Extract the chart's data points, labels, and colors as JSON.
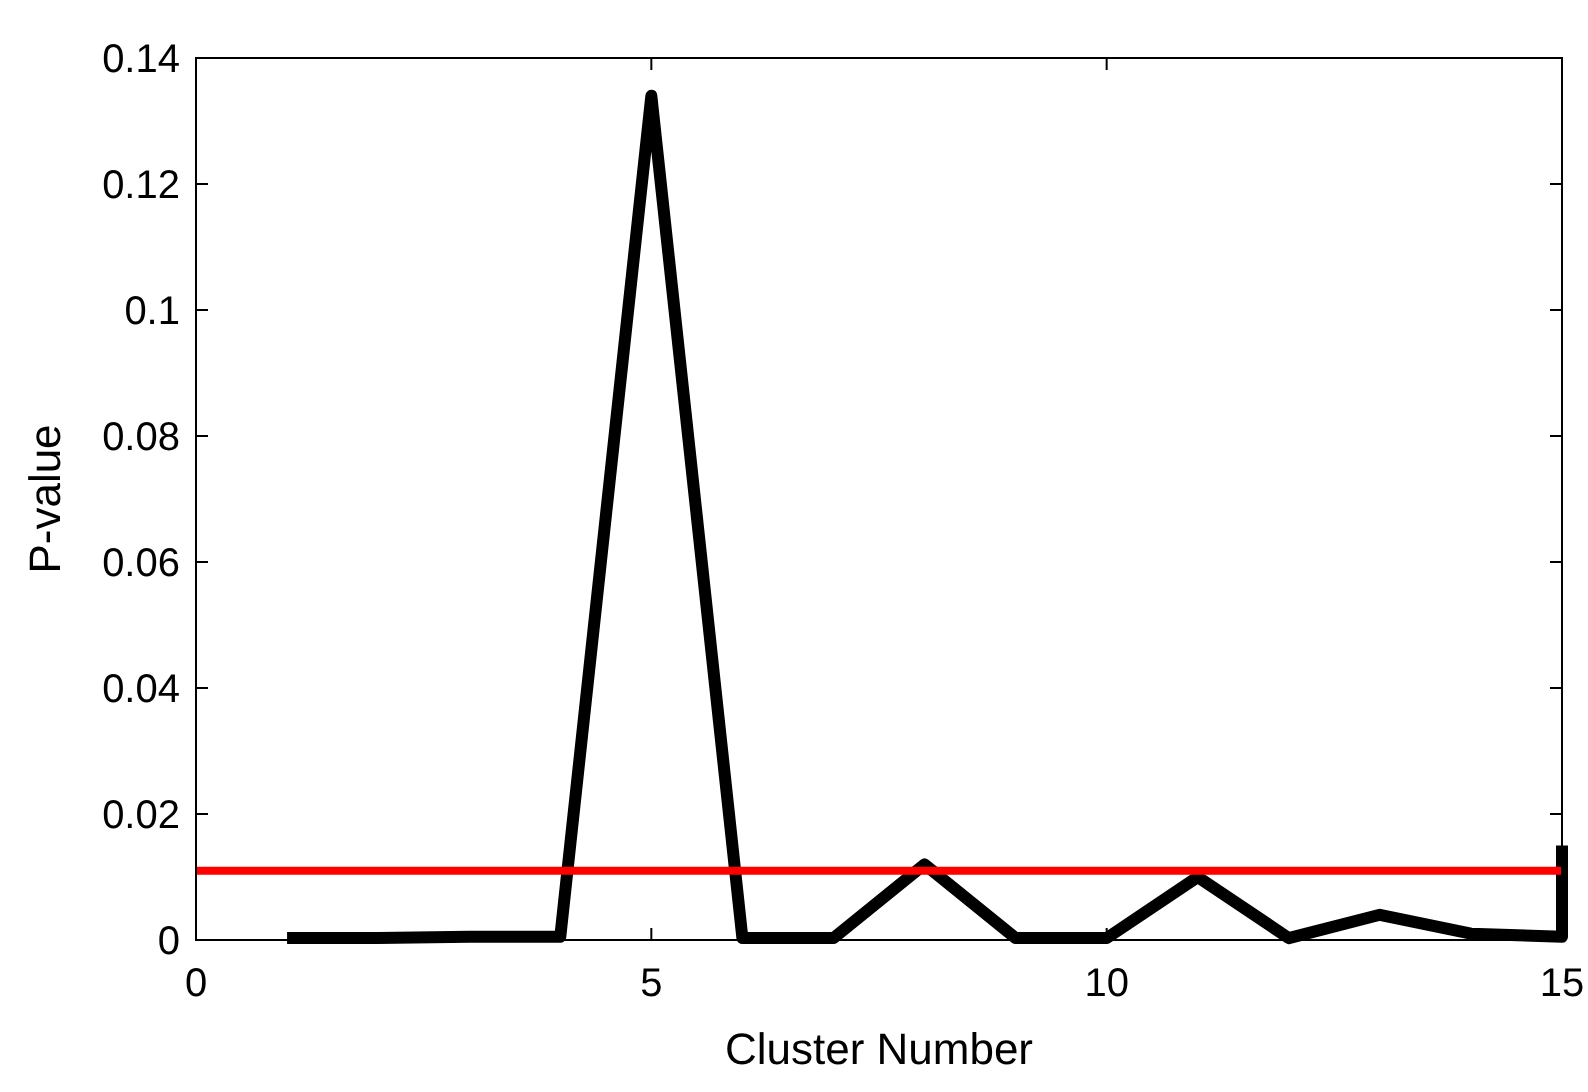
{
  "chart_data": {
    "type": "line",
    "xlabel": "Cluster Number",
    "ylabel": "P-value",
    "x": [
      1,
      2,
      3,
      4,
      5,
      6,
      7,
      8,
      9,
      10,
      11,
      12,
      13,
      14,
      15,
      15
    ],
    "series": [
      {
        "color": "#000000",
        "values": [
          0.0003,
          0.0003,
          0.0005,
          0.0005,
          0.134,
          0.0003,
          0.0003,
          0.012,
          0.0003,
          0.0003,
          0.01,
          0.0003,
          0.004,
          0.001,
          0.0005,
          0.015
        ]
      }
    ],
    "ref_lines": [
      {
        "axis": "y",
        "value": 0.011,
        "color": "#ff0000"
      }
    ],
    "xlim": [
      0,
      15
    ],
    "xticks": [
      0,
      5,
      10,
      15
    ],
    "ylim": [
      0,
      0.14
    ],
    "yticks": [
      0,
      0.02,
      0.04,
      0.06,
      0.08,
      0.1,
      0.12,
      0.14
    ],
    "grid": false,
    "marker": "none",
    "line_style": "solid"
  }
}
